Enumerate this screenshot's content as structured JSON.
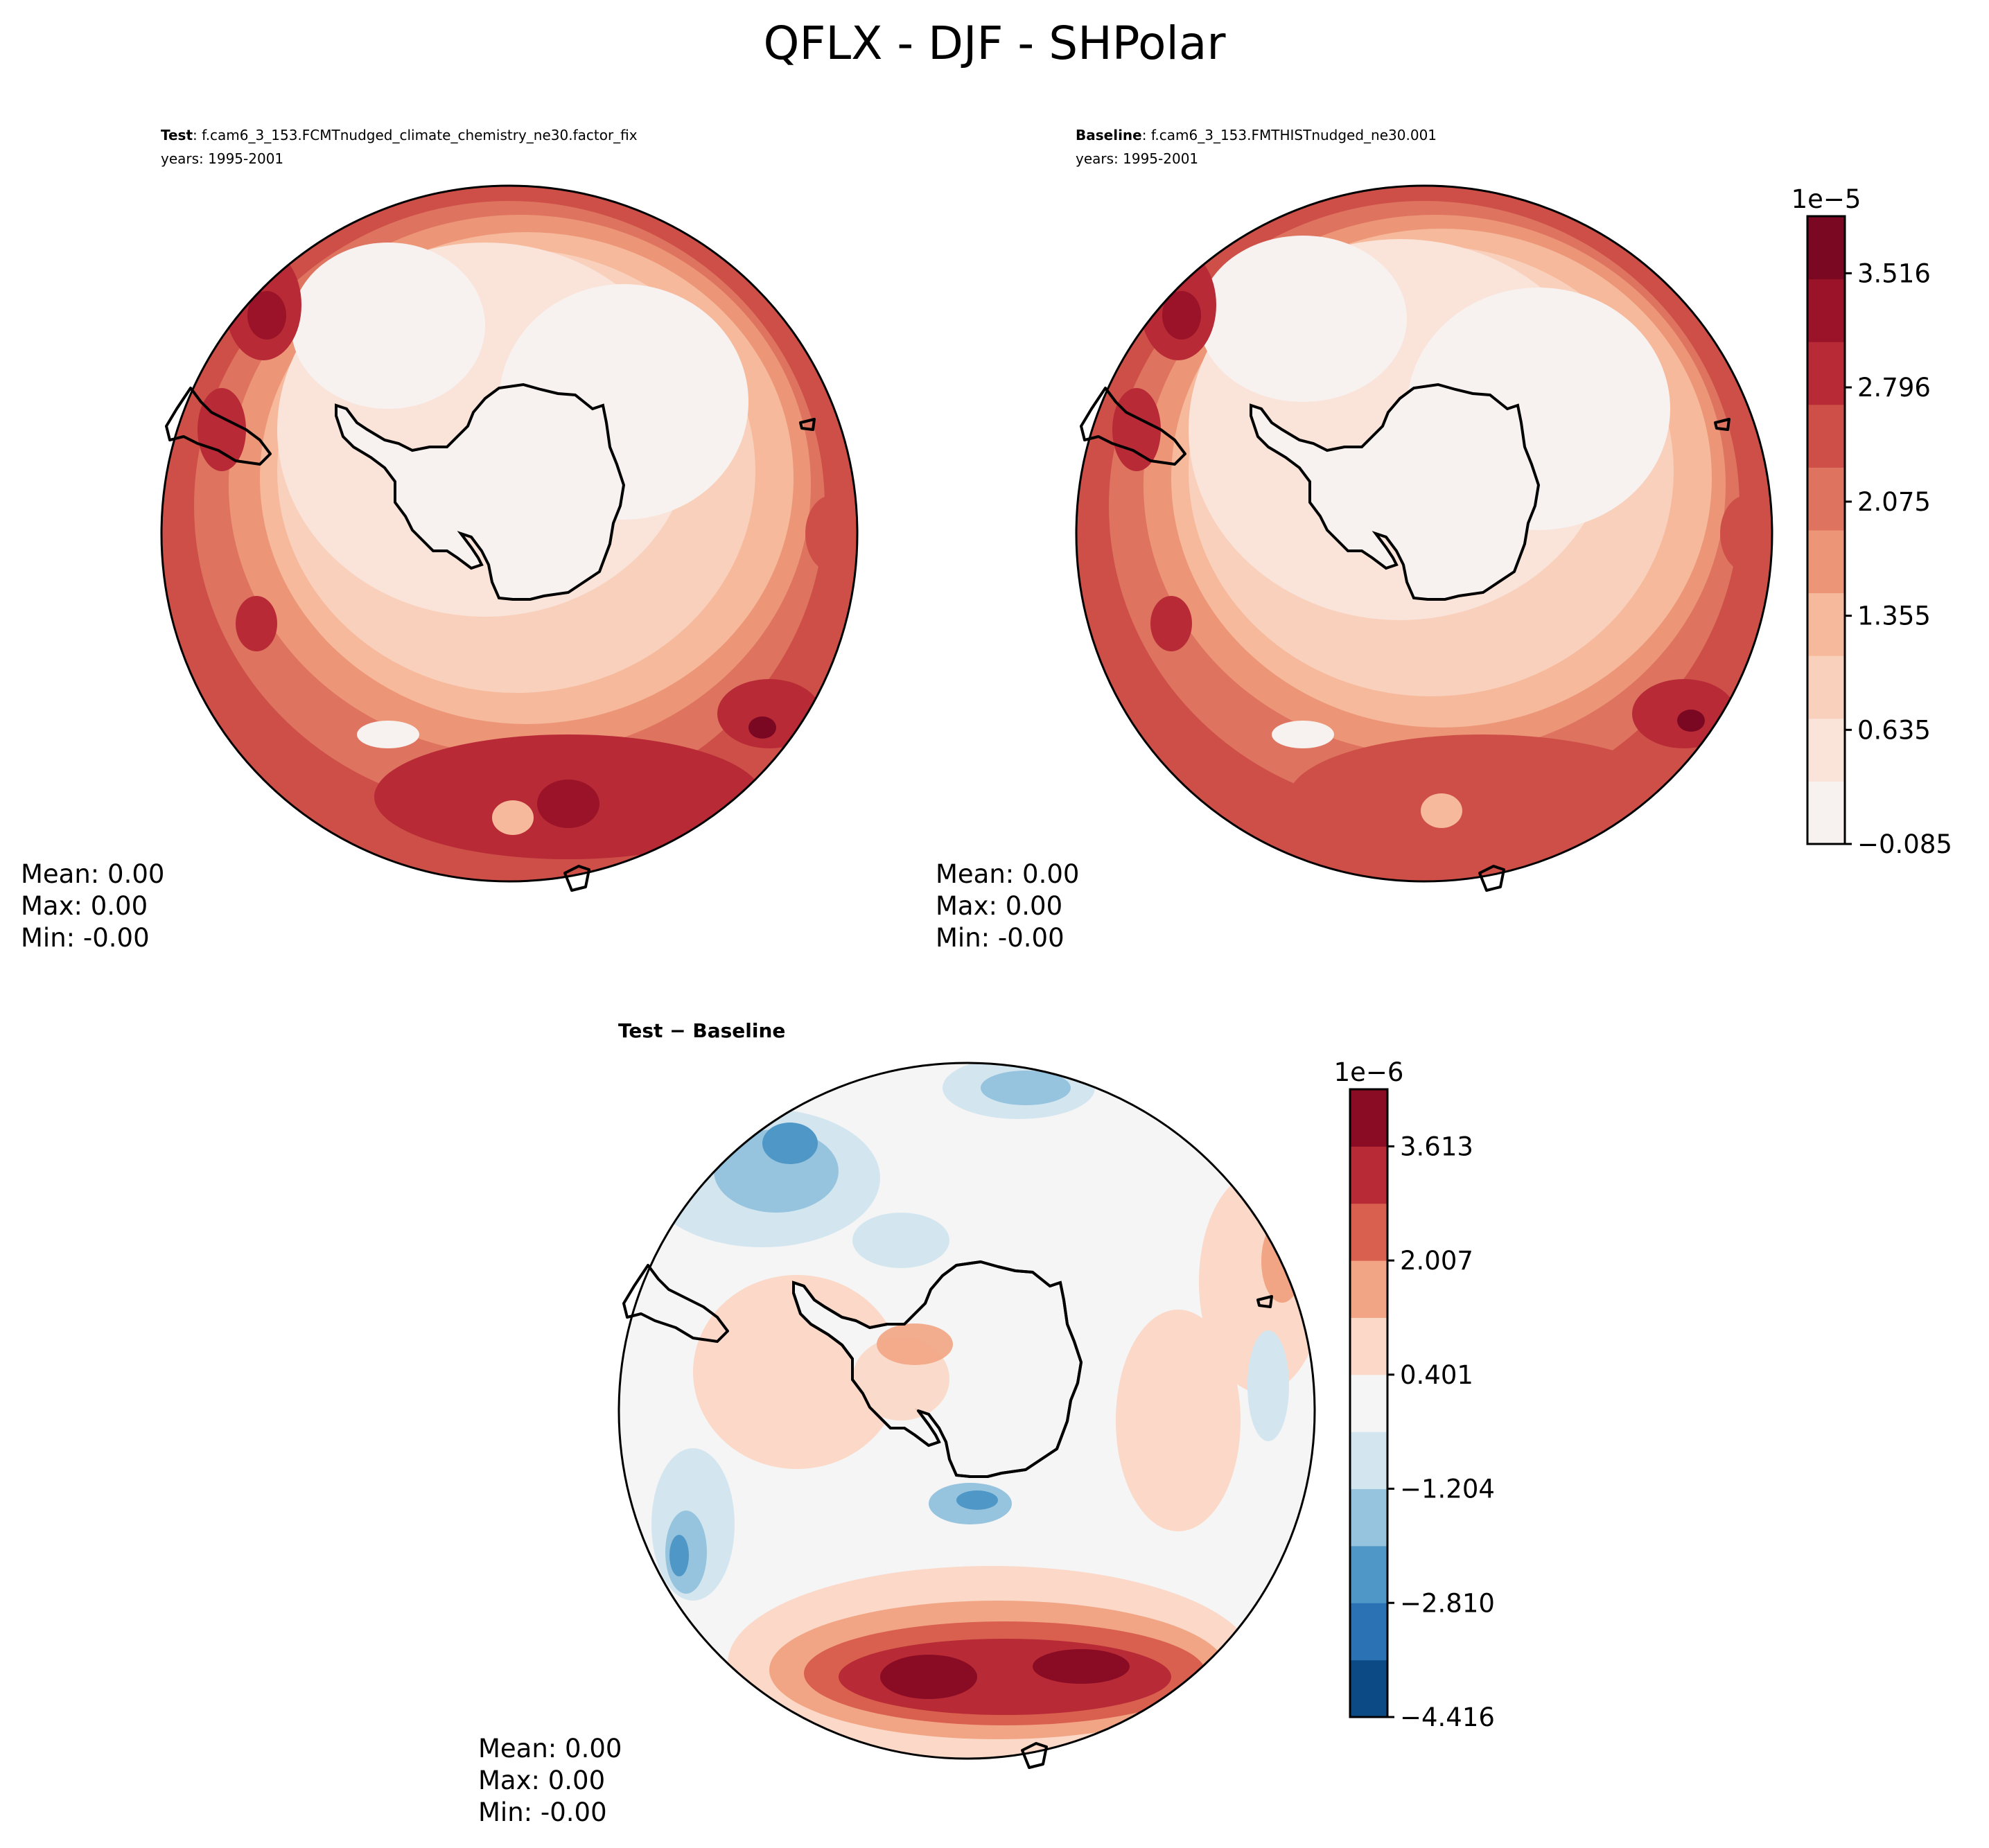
{
  "figure_title": "QFLX - DJF - SHPolar",
  "colors": {
    "abs_levels": [
      "#f7f2ef",
      "#fae3d9",
      "#f9d0bb",
      "#f6b99b",
      "#ec9577",
      "#de735f",
      "#cd4f48",
      "#b82a36",
      "#9a1328",
      "#7a0822"
    ],
    "diff_levels": [
      "#0b4a85",
      "#2a72b4",
      "#4f97c6",
      "#96c4de",
      "#d3e6f0",
      "#f5f5f5",
      "#fbd8c7",
      "#f2a584",
      "#d9604e",
      "#b82a36",
      "#8a0c24"
    ],
    "coastline": "#000000"
  },
  "chart_data": [
    {
      "type": "contour-map",
      "projection": "South Polar Stereographic",
      "title_bold": "Test",
      "title_rest": ": f.cam6_3_153.FCMTnudged_climate_chemistry_ne30.factor_fix",
      "years": "years: 1995-2001",
      "stats": {
        "mean": "Mean:  0.00",
        "max": "Max:  0.00",
        "min": "Min: -0.00"
      },
      "colorbar": "shared_abs"
    },
    {
      "type": "contour-map",
      "projection": "South Polar Stereographic",
      "title_bold": "Baseline",
      "title_rest": ": f.cam6_3_153.FMTHISTnudged_ne30.001",
      "years": "years: 1995-2001",
      "stats": {
        "mean": "Mean:  0.00",
        "max": "Max:  0.00",
        "min": "Min: -0.00"
      },
      "colorbar": "shared_abs"
    },
    {
      "type": "contour-map",
      "projection": "South Polar Stereographic",
      "title_bold": "Test − Baseline",
      "stats": {
        "mean": "Mean:  0.00",
        "max": "Max:  0.00",
        "min": "Min: -0.00"
      },
      "colorbar": "diff"
    }
  ],
  "colorbars": {
    "abs": {
      "scale_label": "1e−5",
      "range": [
        -0.085,
        3.876
      ],
      "ticks": [
        -0.085,
        0.635,
        1.355,
        2.075,
        2.796,
        3.516
      ],
      "tick_labels": [
        "−0.085",
        "0.635",
        "1.355",
        "2.075",
        "2.796",
        "3.516"
      ],
      "n_levels": 10
    },
    "diff": {
      "scale_label": "1e−6",
      "range": [
        -4.416,
        4.416
      ],
      "ticks": [
        -4.416,
        -2.81,
        -1.204,
        0.401,
        2.007,
        3.613
      ],
      "tick_labels": [
        "−4.416",
        "−2.810",
        "−1.204",
        "0.401",
        "2.007",
        "3.613"
      ],
      "n_levels": 11
    }
  }
}
